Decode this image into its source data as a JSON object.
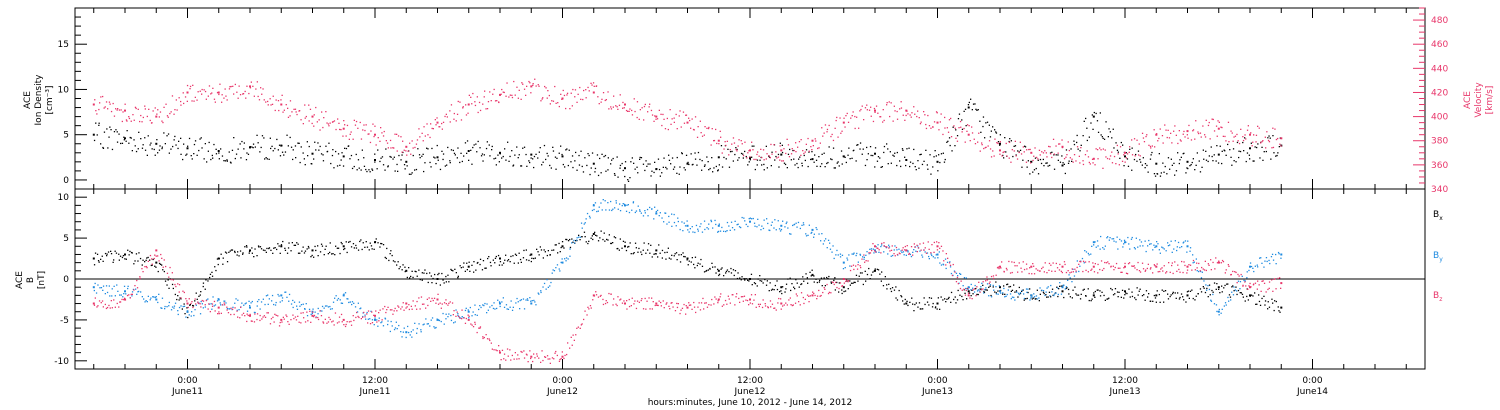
{
  "chart_data": [
    {
      "type": "scatter",
      "panel": "top",
      "ylabel_left": [
        "ACE",
        "Ion Density",
        "[cm⁻³]"
      ],
      "ylabel_right": [
        "ACE",
        "Velocity",
        "[km/s]"
      ],
      "ylim_left": [
        -1,
        19
      ],
      "yticks_left": [
        0,
        5,
        10,
        15
      ],
      "ylim_right": [
        340,
        490
      ],
      "yticks_right": [
        340,
        360,
        380,
        400,
        420,
        440,
        460,
        480
      ],
      "series": [
        {
          "color": "#000000",
          "axis": "left",
          "x_hours": [
            -6,
            -4,
            -2,
            0,
            2,
            4,
            6,
            8,
            10,
            12,
            14,
            16,
            18,
            20,
            22,
            24,
            26,
            28,
            30,
            32,
            34,
            36,
            38,
            40,
            42,
            44,
            46,
            48,
            50,
            52,
            54,
            56,
            58,
            60,
            62,
            64,
            66,
            68,
            70
          ],
          "values": [
            5.0,
            4.6,
            4.0,
            3.5,
            3.2,
            3.6,
            3.8,
            2.9,
            2.6,
            2.2,
            2.0,
            2.5,
            3.2,
            3.0,
            2.8,
            2.6,
            1.8,
            1.3,
            1.2,
            1.8,
            2.5,
            2.4,
            2.8,
            2.3,
            2.6,
            2.9,
            2.2,
            2.0,
            8.0,
            4.0,
            2.0,
            1.6,
            7.0,
            2.6,
            1.8,
            2.0,
            2.8,
            3.5,
            3.8
          ]
        },
        {
          "color": "#e8366a",
          "axis": "right",
          "x_hours": [
            -6,
            -4,
            -2,
            0,
            2,
            4,
            6,
            8,
            10,
            12,
            14,
            16,
            18,
            20,
            22,
            24,
            26,
            28,
            30,
            32,
            34,
            36,
            38,
            40,
            42,
            44,
            46,
            48,
            50,
            52,
            54,
            56,
            58,
            60,
            62,
            64,
            66,
            68,
            70
          ],
          "values": [
            410,
            405,
            400,
            420,
            420,
            425,
            410,
            400,
            390,
            385,
            375,
            395,
            410,
            418,
            425,
            415,
            420,
            410,
            400,
            395,
            380,
            372,
            372,
            380,
            395,
            405,
            405,
            395,
            385,
            372,
            370,
            375,
            365,
            370,
            385,
            388,
            390,
            385,
            382
          ]
        }
      ]
    },
    {
      "type": "scatter",
      "panel": "bottom",
      "ylabel_left": [
        "ACE",
        "B",
        "[nT]"
      ],
      "ylim": [
        -11,
        11
      ],
      "yticks": [
        -10,
        -5,
        0,
        5,
        10
      ],
      "series": [
        {
          "name": "Bx",
          "color": "#000000",
          "x_hours": [
            -6,
            -4,
            -2,
            0,
            2,
            4,
            6,
            8,
            10,
            12,
            14,
            16,
            18,
            20,
            22,
            24,
            26,
            28,
            30,
            32,
            34,
            36,
            38,
            40,
            42,
            44,
            46,
            48,
            50,
            52,
            54,
            56,
            58,
            60,
            62,
            64,
            66,
            68,
            70
          ],
          "values": [
            2.5,
            3.0,
            2.0,
            -4.0,
            2.5,
            3.5,
            4.0,
            3.5,
            4.0,
            4.5,
            1.0,
            0.0,
            1.5,
            2.5,
            3.0,
            4.0,
            5.5,
            4.0,
            3.5,
            2.5,
            1.0,
            0.0,
            -1.0,
            0.5,
            -1.0,
            1.0,
            -3.0,
            -3.0,
            -1.5,
            -1.0,
            -2.0,
            -1.5,
            -2.0,
            -1.5,
            -2.0,
            -2.0,
            -1.0,
            -2.0,
            -3.5
          ]
        },
        {
          "name": "By",
          "color": "#1f8be0",
          "x_hours": [
            -6,
            -4,
            -2,
            0,
            2,
            4,
            6,
            8,
            10,
            12,
            14,
            16,
            18,
            20,
            22,
            24,
            26,
            28,
            30,
            32,
            34,
            36,
            38,
            40,
            42,
            44,
            46,
            48,
            50,
            52,
            54,
            56,
            58,
            60,
            62,
            64,
            66,
            68,
            70
          ],
          "values": [
            -1.0,
            -1.5,
            -2.5,
            -4.0,
            -2.5,
            -3.5,
            -2.0,
            -4.0,
            -2.0,
            -5.0,
            -6.5,
            -5.0,
            -4.0,
            -3.0,
            -3.0,
            2.0,
            9.0,
            9.0,
            8.0,
            6.5,
            6.5,
            7.0,
            6.5,
            6.0,
            2.0,
            3.5,
            3.5,
            3.0,
            -1.0,
            -1.5,
            -2.0,
            -1.0,
            4.5,
            4.5,
            4.0,
            4.0,
            -4.0,
            1.5,
            3.0
          ]
        },
        {
          "name": "Bz",
          "color": "#e8366a",
          "x_hours": [
            -6,
            -4,
            -2,
            0,
            2,
            4,
            6,
            8,
            10,
            12,
            14,
            16,
            18,
            20,
            22,
            24,
            26,
            28,
            30,
            32,
            34,
            36,
            38,
            40,
            42,
            44,
            46,
            48,
            50,
            52,
            54,
            56,
            58,
            60,
            62,
            64,
            66,
            68,
            70
          ],
          "values": [
            -3.0,
            -2.5,
            3.5,
            -3.0,
            -3.5,
            -4.5,
            -5.0,
            -4.5,
            -5.0,
            -4.5,
            -3.0,
            -2.5,
            -5.0,
            -9.0,
            -9.5,
            -9.5,
            -2.0,
            -3.0,
            -3.0,
            -3.5,
            -2.5,
            -2.5,
            -3.0,
            -2.0,
            0.0,
            4.0,
            3.5,
            4.0,
            -2.0,
            1.5,
            1.5,
            1.5,
            1.5,
            1.5,
            1.5,
            1.5,
            2.0,
            -1.0,
            -0.5
          ]
        }
      ],
      "legend": [
        "B",
        "B",
        "B"
      ],
      "legend_subscripts": [
        "x",
        "y",
        "z"
      ]
    }
  ],
  "x_axis": {
    "range_hours": [
      -7.2,
      79.2
    ],
    "ticks": [
      {
        "hours": 0,
        "time": "0:00",
        "date": "June11"
      },
      {
        "hours": 12,
        "time": "12:00",
        "date": "June11"
      },
      {
        "hours": 24,
        "time": "0:00",
        "date": "June12"
      },
      {
        "hours": 36,
        "time": "12:00",
        "date": "June12"
      },
      {
        "hours": 48,
        "time": "0:00",
        "date": "June13"
      },
      {
        "hours": 60,
        "time": "12:00",
        "date": "June13"
      },
      {
        "hours": 72,
        "time": "0:00",
        "date": "June14"
      }
    ],
    "xlabel": "hours:minutes, June 10, 2012 - June 14, 2012"
  },
  "colors": {
    "black": "#000000",
    "pink": "#e8366a",
    "blue": "#1f8be0"
  }
}
